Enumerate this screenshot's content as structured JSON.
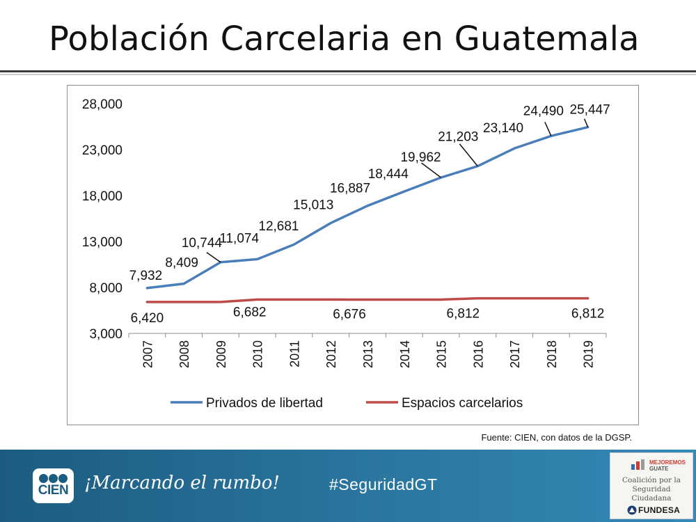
{
  "slide": {
    "title": "Población Carcelaria en Guatemala",
    "source": "Fuente: CIEN, con datos de la DGSP."
  },
  "footer": {
    "logo_text": "CIEN",
    "slogan": "¡Marcando el rumbo!",
    "hashtag": "#SeguridadGT"
  },
  "partner": {
    "brand_top": "MEJOREMOS",
    "brand_bottom": "GUATE",
    "coalition_line1": "Coalición por la",
    "coalition_line2": "Seguridad Ciudadana",
    "fundesa": "FUNDESA"
  },
  "colors": {
    "series1": "#4a7ebb",
    "series2": "#be4b48",
    "footer": "#2a77a0"
  },
  "chart_data": {
    "type": "line",
    "title": "",
    "xlabel": "",
    "ylabel": "",
    "categories": [
      "2007",
      "2008",
      "2009",
      "2010",
      "2011",
      "2012",
      "2013",
      "2014",
      "2015",
      "2016",
      "2017",
      "2018",
      "2019"
    ],
    "ylim": [
      3000,
      28000
    ],
    "yticks": [
      3000,
      8000,
      13000,
      18000,
      23000,
      28000
    ],
    "ytick_labels": [
      "3,000",
      "8,000",
      "13,000",
      "18,000",
      "23,000",
      "28,000"
    ],
    "grid": false,
    "legend": "bottom",
    "series": [
      {
        "name": "Privados de libertad",
        "values": [
          7932,
          8409,
          10744,
          11074,
          12681,
          15013,
          16887,
          18444,
          19962,
          21203,
          23140,
          24490,
          25447
        ],
        "labels": [
          "7,932",
          "8,409",
          "10,744",
          "11,074",
          "12,681",
          "15,013",
          "16,887",
          "18,444",
          "19,962",
          "21,203",
          "23,140",
          "24,490",
          "25,447"
        ]
      },
      {
        "name": "Espacios carcelarios",
        "values": [
          6420,
          6420,
          6420,
          6682,
          6682,
          6682,
          6676,
          6676,
          6676,
          6812,
          6812,
          6812,
          6812
        ],
        "labels": [
          "6,420",
          null,
          null,
          "6,682",
          null,
          null,
          "6,676",
          null,
          null,
          "6,812",
          null,
          null,
          "6,812"
        ]
      }
    ]
  }
}
